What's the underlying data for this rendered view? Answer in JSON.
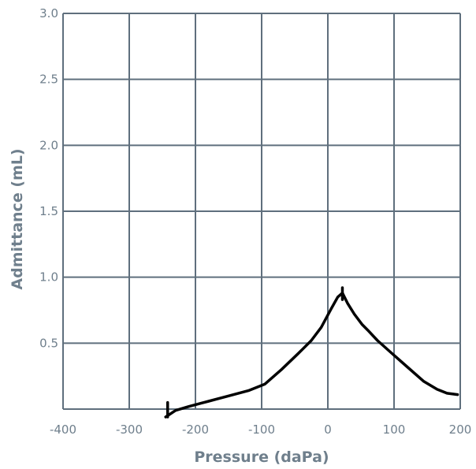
{
  "chart_data": {
    "type": "line",
    "title": "",
    "xlabel": "Pressure (daPa)",
    "ylabel": "Admittance (mL)",
    "xlim": [
      -400,
      200
    ],
    "ylim": [
      0,
      3.0
    ],
    "x_ticks": [
      -400,
      -300,
      -200,
      -100,
      0,
      100,
      200
    ],
    "x_tick_labels": [
      "-400",
      "-300",
      "-200",
      "-100",
      "0",
      "100",
      "200"
    ],
    "y_ticks": [
      0.5,
      1.0,
      1.5,
      2.0,
      2.5,
      3.0
    ],
    "y_tick_labels": [
      "0.5",
      "1.0",
      "1.5",
      "2.0",
      "2.5",
      "3.0"
    ],
    "grid": true,
    "series": [
      {
        "color": "#000000",
        "x": [
          -245,
          -230,
          -210,
          -180,
          -150,
          -120,
          -95,
          -70,
          -45,
          -25,
          -10,
          5,
          15,
          22,
          30,
          40,
          52,
          60,
          75,
          95,
          120,
          145,
          165,
          180,
          196
        ],
        "y": [
          -0.06,
          -0.01,
          0.02,
          0.06,
          0.1,
          0.14,
          0.19,
          0.3,
          0.42,
          0.52,
          0.62,
          0.76,
          0.85,
          0.88,
          0.8,
          0.72,
          0.64,
          0.6,
          0.52,
          0.43,
          0.32,
          0.21,
          0.15,
          0.12,
          0.11
        ]
      }
    ],
    "markers": [
      {
        "x": -242,
        "y1": -0.06,
        "y2": 0.05
      },
      {
        "x": 22,
        "y1": 0.83,
        "y2": 0.92
      }
    ]
  }
}
